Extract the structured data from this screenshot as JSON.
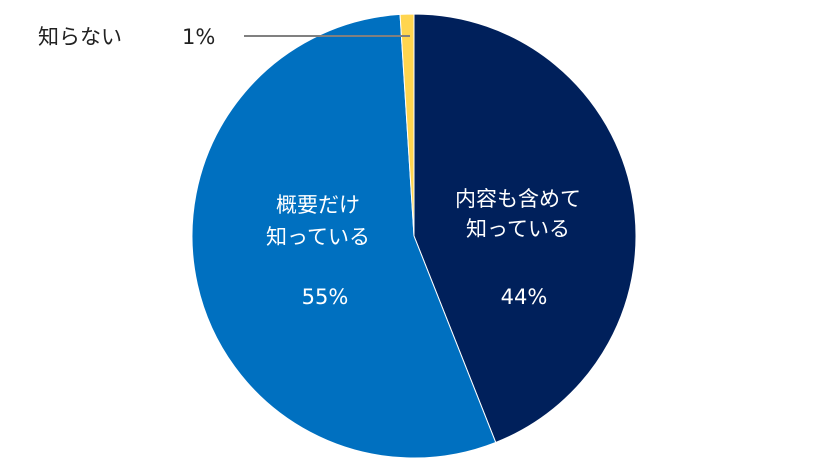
{
  "chart_data": {
    "type": "pie",
    "slices": [
      {
        "label_lines": [
          "内容も含めて",
          "知っている"
        ],
        "value": 44,
        "value_label": "44%",
        "color": "#00205B"
      },
      {
        "label_lines": [
          "概要だけ",
          "知っている"
        ],
        "value": 55,
        "value_label": "55%",
        "color": "#0070C0"
      },
      {
        "label_lines": [
          "知らない"
        ],
        "value": 1,
        "value_label": "1%",
        "color": "#FFD54F"
      }
    ]
  }
}
